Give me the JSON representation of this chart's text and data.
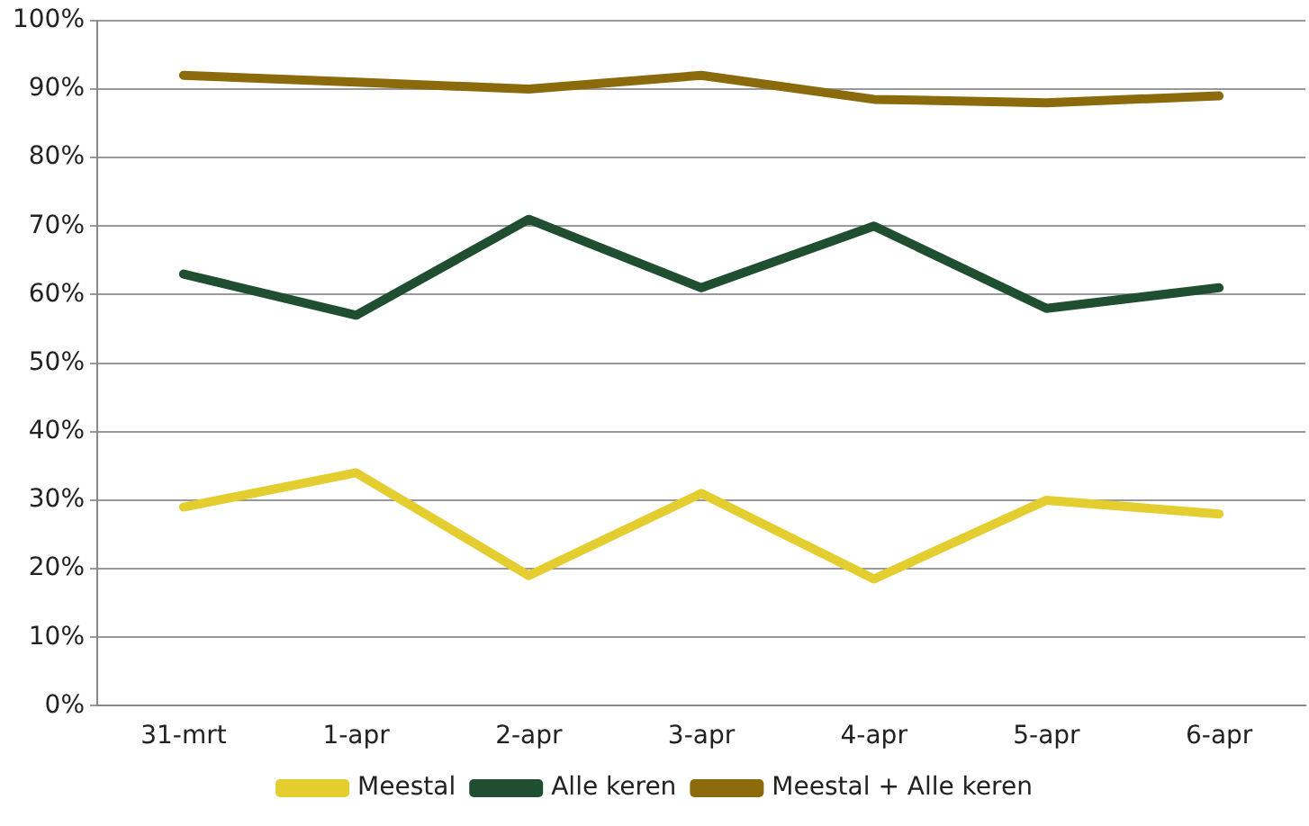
{
  "chart_data": {
    "type": "line",
    "categories": [
      "31-mrt",
      "1-apr",
      "2-apr",
      "3-apr",
      "4-apr",
      "5-apr",
      "6-apr"
    ],
    "series": [
      {
        "name": "Meestal",
        "color": "#e3cd2f",
        "values": [
          29,
          34,
          19,
          31,
          18.5,
          30,
          28
        ]
      },
      {
        "name": "Alle keren",
        "color": "#1f4e31",
        "values": [
          63,
          57,
          71,
          61,
          70,
          58,
          61
        ]
      },
      {
        "name": "Meestal + Alle keren",
        "color": "#8b6a0c",
        "values": [
          92,
          91,
          90,
          92,
          88.5,
          88,
          89
        ]
      }
    ],
    "ylim": [
      0,
      100
    ],
    "yticks": [
      {
        "value": 0,
        "label": "0%"
      },
      {
        "value": 10,
        "label": "10%"
      },
      {
        "value": 20,
        "label": "20%"
      },
      {
        "value": 30,
        "label": "30%"
      },
      {
        "value": 40,
        "label": "40%"
      },
      {
        "value": 50,
        "label": "50%"
      },
      {
        "value": 60,
        "label": "60%"
      },
      {
        "value": 70,
        "label": "70%"
      },
      {
        "value": 80,
        "label": "80%"
      },
      {
        "value": 90,
        "label": "90%"
      },
      {
        "value": 100,
        "label": "100%"
      }
    ],
    "grid": "y",
    "legend": "bottom",
    "marker": "none",
    "line_style": "solid"
  }
}
